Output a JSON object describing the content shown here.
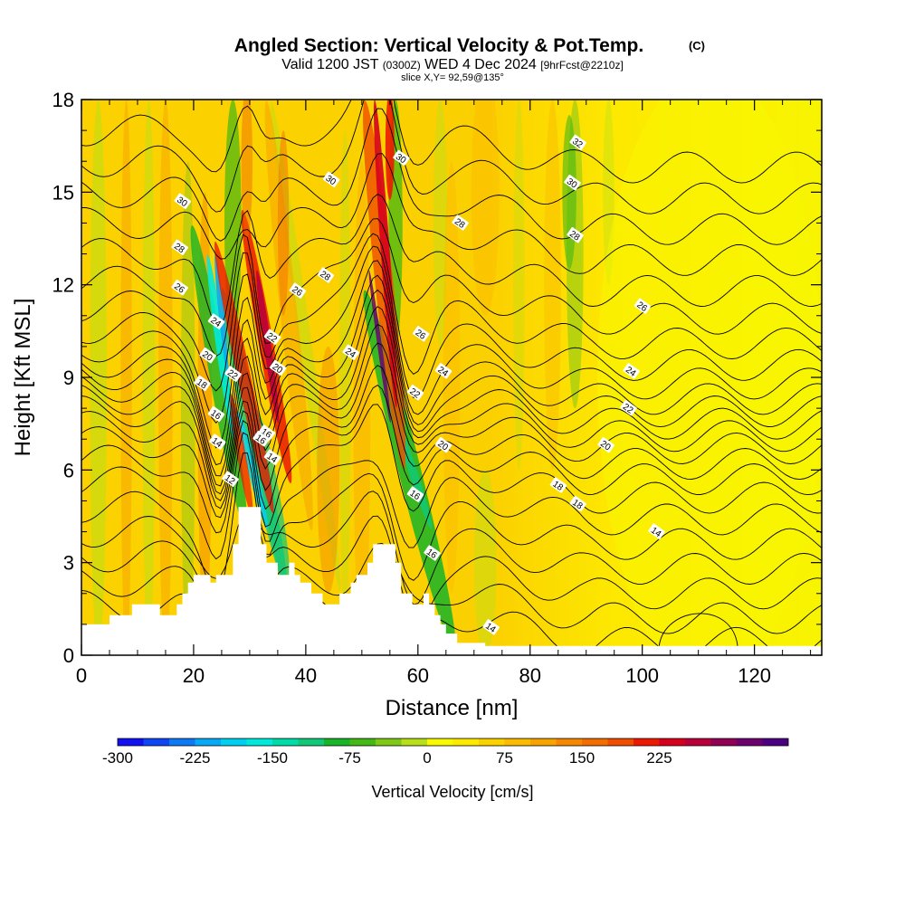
{
  "title": {
    "main": "Angled Section: Vertical Velocity & Pot.Temp.",
    "main_suffix": "(C)",
    "valid_prefix": "Valid 1200 JST",
    "valid_utc": "(0300Z)",
    "valid_date": "WED 4 Dec 2024",
    "valid_fcst": "[9hrFcst@2210z]",
    "slice": "slice X,Y= 92,59@135°"
  },
  "chart_data": {
    "type": "heatmap",
    "xlabel": "Distance [nm]",
    "ylabel": "Height [Kft MSL]",
    "xlim": [
      0,
      132
    ],
    "ylim": [
      0,
      18
    ],
    "x_ticks": [
      "0",
      "20",
      "40",
      "60",
      "80",
      "100",
      "120"
    ],
    "x_tick_values": [
      0,
      20,
      40,
      60,
      80,
      100,
      120
    ],
    "y_ticks": [
      "0",
      "3",
      "6",
      "9",
      "12",
      "15",
      "18"
    ],
    "y_tick_values": [
      0,
      3,
      6,
      9,
      12,
      15,
      18
    ],
    "colorbar": {
      "label": "Vertical Velocity [cm/s]",
      "tick_labels": [
        "-300",
        "-225",
        "-150",
        "-75",
        "0",
        "75",
        "150",
        "225"
      ],
      "tick_values": [
        -300,
        -225,
        -150,
        -75,
        0,
        75,
        150,
        225
      ],
      "colors": [
        "#1010f0",
        "#0f45f5",
        "#0e78f5",
        "#07a8f5",
        "#00d0f0",
        "#00eadc",
        "#00dca8",
        "#10c878",
        "#18b428",
        "#44b814",
        "#80c818",
        "#b8e018",
        "#f8f800",
        "#fde800",
        "#fbd200",
        "#fbbb00",
        "#f8a400",
        "#f58800",
        "#f26e00",
        "#ef4e00",
        "#eb1a00",
        "#d6001c",
        "#b8003a",
        "#900054",
        "#6c006e",
        "#4a0080"
      ]
    },
    "features": [
      {
        "name": "updraft",
        "x": 29.0,
        "peak_cm_s": 200
      },
      {
        "name": "updraft",
        "x": 32.5,
        "peak_cm_s": 230
      },
      {
        "name": "updraft",
        "x": 54.0,
        "peak_cm_s": 230
      },
      {
        "name": "downdraft",
        "x": 24.5,
        "peak_cm_s": -260
      },
      {
        "name": "downdraft",
        "x": 30.5,
        "peak_cm_s": -200
      },
      {
        "name": "downdraft",
        "x": 59.5,
        "peak_cm_s": -170
      },
      {
        "name": "downdraft",
        "x": 87.0,
        "peak_cm_s": -90
      }
    ],
    "terrain_top_kft": [
      [
        0,
        1
      ],
      [
        4,
        1
      ],
      [
        5,
        1.3
      ],
      [
        8,
        1.3
      ],
      [
        9,
        1.65
      ],
      [
        13,
        1.65
      ],
      [
        14,
        1.3
      ],
      [
        16,
        1.3
      ],
      [
        17,
        1.65
      ],
      [
        18,
        2.0
      ],
      [
        19,
        2.35
      ],
      [
        20,
        2.6
      ],
      [
        22,
        2.6
      ],
      [
        23,
        2.35
      ],
      [
        24,
        2.6
      ],
      [
        26,
        2.6
      ],
      [
        27,
        3.6
      ],
      [
        28,
        4.8
      ],
      [
        31,
        4.8
      ],
      [
        32,
        3.6
      ],
      [
        33,
        3.0
      ],
      [
        34,
        3.0
      ],
      [
        35,
        2.6
      ],
      [
        36,
        2.6
      ],
      [
        37,
        3.0
      ],
      [
        38,
        2.6
      ],
      [
        39,
        2.35
      ],
      [
        41,
        2.0
      ],
      [
        42,
        2.0
      ],
      [
        43,
        1.65
      ],
      [
        45,
        1.65
      ],
      [
        46,
        2.0
      ],
      [
        47,
        2.0
      ],
      [
        48,
        2.35
      ],
      [
        49,
        2.6
      ],
      [
        50,
        2.6
      ],
      [
        51,
        3.0
      ],
      [
        52,
        3.6
      ],
      [
        55,
        3.6
      ],
      [
        56,
        3.0
      ],
      [
        57,
        2.0
      ],
      [
        58,
        2.0
      ],
      [
        59,
        1.65
      ],
      [
        60,
        1.65
      ],
      [
        61,
        2.0
      ],
      [
        62,
        1.65
      ],
      [
        63,
        1.3
      ],
      [
        64,
        1.0
      ],
      [
        65,
        0.7
      ],
      [
        66,
        0.7
      ],
      [
        67,
        0.4
      ],
      [
        70,
        0.4
      ],
      [
        72,
        0.3
      ],
      [
        132,
        0.3
      ]
    ],
    "theta_contours_C": [
      {
        "label": "12",
        "x": 26.5,
        "y": 5.7
      },
      {
        "label": "14",
        "x": 24.2,
        "y": 6.9
      },
      {
        "label": "14",
        "x": 34.0,
        "y": 6.4
      },
      {
        "label": "14",
        "x": 102.5,
        "y": 4.0
      },
      {
        "label": "14",
        "x": 73.0,
        "y": 0.9
      },
      {
        "label": "16",
        "x": 24.0,
        "y": 7.8
      },
      {
        "label": "16",
        "x": 33.0,
        "y": 7.2
      },
      {
        "label": "16",
        "x": 59.5,
        "y": 5.2
      },
      {
        "label": "16",
        "x": 62.5,
        "y": 3.3
      },
      {
        "label": "16",
        "x": 32.0,
        "y": 7.0
      },
      {
        "label": "18",
        "x": 21.5,
        "y": 8.8
      },
      {
        "label": "18",
        "x": 85.0,
        "y": 5.5
      },
      {
        "label": "18",
        "x": 88.5,
        "y": 4.9
      },
      {
        "label": "20",
        "x": 22.5,
        "y": 9.7
      },
      {
        "label": "20",
        "x": 35.0,
        "y": 9.3
      },
      {
        "label": "20",
        "x": 64.5,
        "y": 6.8
      },
      {
        "label": "20",
        "x": 93.5,
        "y": 6.8
      },
      {
        "label": "22",
        "x": 27.0,
        "y": 9.1
      },
      {
        "label": "22",
        "x": 59.5,
        "y": 8.5
      },
      {
        "label": "22",
        "x": 97.5,
        "y": 8.0
      },
      {
        "label": "22",
        "x": 34.0,
        "y": 10.3
      },
      {
        "label": "24",
        "x": 24.0,
        "y": 10.8
      },
      {
        "label": "24",
        "x": 48.0,
        "y": 9.8
      },
      {
        "label": "24",
        "x": 64.5,
        "y": 9.2
      },
      {
        "label": "24",
        "x": 98.0,
        "y": 9.2
      },
      {
        "label": "26",
        "x": 17.5,
        "y": 11.9
      },
      {
        "label": "26",
        "x": 38.5,
        "y": 11.8
      },
      {
        "label": "26",
        "x": 60.5,
        "y": 10.4
      },
      {
        "label": "26",
        "x": 100.0,
        "y": 11.3
      },
      {
        "label": "28",
        "x": 17.5,
        "y": 13.2
      },
      {
        "label": "28",
        "x": 43.5,
        "y": 12.3
      },
      {
        "label": "28",
        "x": 67.5,
        "y": 14.0
      },
      {
        "label": "28",
        "x": 88.0,
        "y": 13.6
      },
      {
        "label": "30",
        "x": 18.0,
        "y": 14.7
      },
      {
        "label": "30",
        "x": 44.5,
        "y": 15.4
      },
      {
        "label": "30",
        "x": 57.0,
        "y": 16.1
      },
      {
        "label": "30",
        "x": 87.5,
        "y": 15.3
      },
      {
        "label": "32",
        "x": 88.5,
        "y": 16.6
      }
    ]
  }
}
